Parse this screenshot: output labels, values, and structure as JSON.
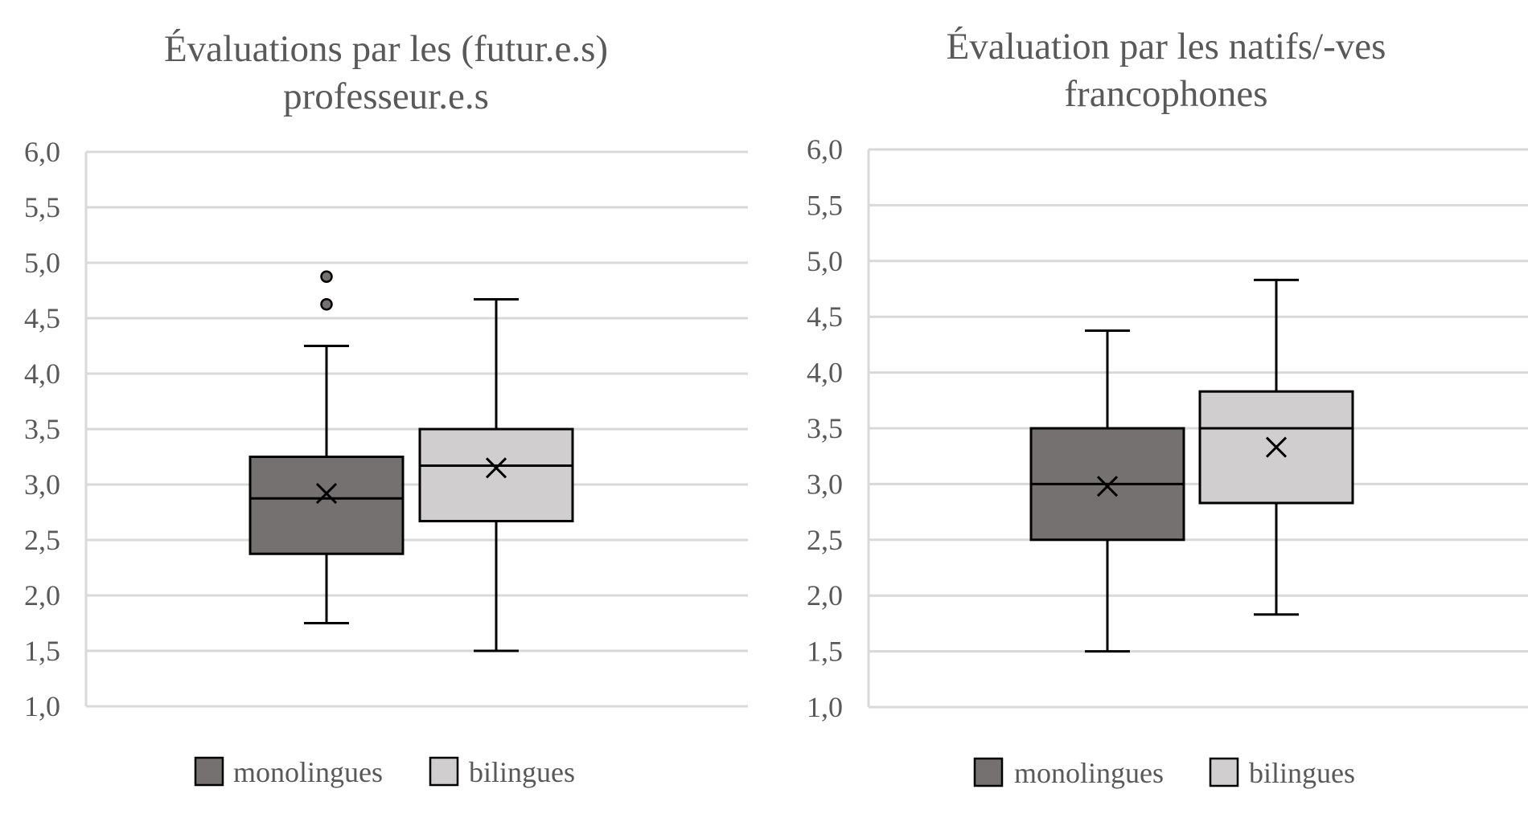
{
  "chart_data": [
    {
      "type": "box",
      "title_lines": [
        "Évaluations par les (futur.e.s)",
        "professeur.e.s"
      ],
      "ylim": [
        1.0,
        6.0
      ],
      "yticks": [
        "1,0",
        "1,5",
        "2,0",
        "2,5",
        "3,0",
        "3,5",
        "4,0",
        "4,5",
        "5,0",
        "5,5",
        "6,0"
      ],
      "grid": true,
      "legend_position": "bottom",
      "series": [
        {
          "name": "monolingues",
          "color": "#767171",
          "min": 1.75,
          "q1": 2.375,
          "median": 2.875,
          "q3": 3.25,
          "max": 4.25,
          "mean": 2.92,
          "outliers": [
            4.625,
            4.875
          ]
        },
        {
          "name": "bilingues",
          "color": "#d0cece",
          "min": 1.5,
          "q1": 2.67,
          "median": 3.17,
          "q3": 3.5,
          "max": 4.67,
          "mean": 3.15,
          "outliers": []
        }
      ]
    },
    {
      "type": "box",
      "title_lines": [
        "Évaluation par les natifs/-ves",
        "francophones"
      ],
      "ylim": [
        1.0,
        6.0
      ],
      "yticks": [
        "1,0",
        "1,5",
        "2,0",
        "2,5",
        "3,0",
        "3,5",
        "4,0",
        "4,5",
        "5,0",
        "5,5",
        "6,0"
      ],
      "grid": true,
      "legend_position": "bottom",
      "series": [
        {
          "name": "monolingues",
          "color": "#767171",
          "min": 1.5,
          "q1": 2.5,
          "median": 3.0,
          "q3": 3.5,
          "max": 4.375,
          "mean": 2.98,
          "outliers": []
        },
        {
          "name": "bilingues",
          "color": "#d0cece",
          "min": 1.83,
          "q1": 2.83,
          "median": 3.5,
          "q3": 3.83,
          "max": 4.83,
          "mean": 3.33,
          "outliers": []
        }
      ]
    }
  ]
}
